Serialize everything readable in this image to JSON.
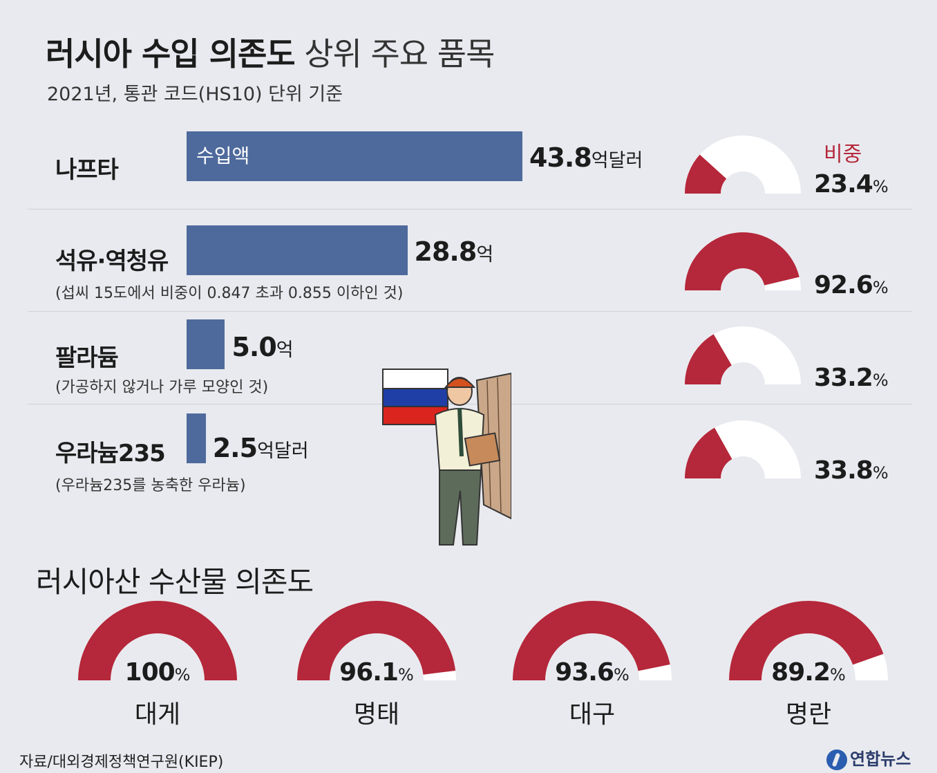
{
  "title": {
    "bold": "러시아 수입 의존도",
    "light": "상위 주요 품목"
  },
  "subtitle": "2021년, 통관 코드(HS10) 단위 기준",
  "share_header": "비중",
  "bar_inner_label": "수입액",
  "section2_title": "러시아산 수산물 의존도",
  "source": "자료/대외경제정책연구원(KIEP)",
  "brand": "연합뉴스",
  "colors": {
    "bar": "#4e6a9c",
    "gauge_fill": "#b5273a",
    "gauge_empty": "#ffffff",
    "background": "#e9eaef"
  },
  "chart_data": [
    {
      "type": "bar",
      "unit": "억달러",
      "categories": [
        "나프타",
        "석유·역청유",
        "팔라듐",
        "우라늄235"
      ],
      "notes": [
        "",
        "(섭씨 15도에서 비중이 0.847 초과 0.855 이하인 것)",
        "(가공하지 않거나 가루 모양인 것)",
        "(우라늄235를 농축한 우라늄)"
      ],
      "values": [
        43.8,
        28.8,
        5.0,
        2.5
      ],
      "value_labels": [
        "43.8",
        "28.8",
        "5.0",
        "2.5"
      ],
      "unit_labels": [
        "억달러",
        "억",
        "억",
        "억달러"
      ],
      "series": [
        {
          "name": "수입액",
          "values": [
            43.8,
            28.8,
            5.0,
            2.5
          ]
        }
      ]
    },
    {
      "type": "pie",
      "variant": "half-donut",
      "categories": [
        "나프타",
        "석유·역청유",
        "팔라듐",
        "우라늄235"
      ],
      "values": [
        23.4,
        92.6,
        33.2,
        33.8
      ],
      "value_labels": [
        "23.4",
        "92.6",
        "33.2",
        "33.8"
      ],
      "unit": "%",
      "series": [
        {
          "name": "비중",
          "values": [
            23.4,
            92.6,
            33.2,
            33.8
          ]
        }
      ]
    },
    {
      "type": "pie",
      "variant": "half-donut",
      "title": "러시아산 수산물 의존도",
      "categories": [
        "대게",
        "명태",
        "대구",
        "명란"
      ],
      "values": [
        100,
        96.1,
        93.6,
        89.2
      ],
      "value_labels": [
        "100",
        "96.1",
        "93.6",
        "89.2"
      ],
      "unit": "%"
    }
  ]
}
